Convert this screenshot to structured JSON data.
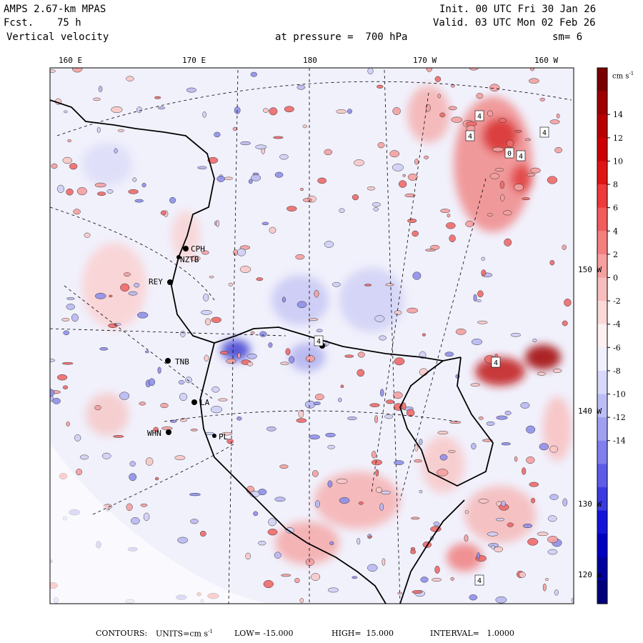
{
  "header": {
    "model": "AMPS 2.67-km MPAS",
    "fcst_label": "Fcst.",
    "fcst_value": "75 h",
    "field": "Vertical velocity",
    "init": "Init. 00 UTC Fri 30 Jan 26",
    "valid": "Valid. 03 UTC Mon 02 Feb 26",
    "pressure": "at pressure =  700 hPa",
    "smoothing": "sm= 6"
  },
  "longitude_labels": [
    "160 E",
    "170 E",
    "180",
    "170 W",
    "160 W"
  ],
  "latitude_labels": [
    "150 W",
    "140 W",
    "130 W",
    "120 W"
  ],
  "stations": [
    "CPH",
    "NZTB",
    "REY",
    "TNB",
    "LA",
    "WHN",
    "PL"
  ],
  "contour_labels": [
    "4",
    "4",
    "4",
    "0",
    "4",
    "4",
    "4",
    "4"
  ],
  "colorbar": {
    "units": "cm s",
    "units_exp": "-1",
    "ticks": [
      "14",
      "12",
      "10",
      "8",
      "6",
      "4",
      "2",
      "0",
      "-2",
      "-4",
      "-6",
      "-8",
      "-10",
      "-12",
      "-14"
    ],
    "colors": [
      "#7a0000",
      "#9e0000",
      "#b80000",
      "#cc0000",
      "#e01414",
      "#ee3a3a",
      "#f25c5c",
      "#f47f7f",
      "#f6a0a0",
      "#f8bdbd",
      "#fad8d8",
      "#fdf0f0",
      "#f0f0fd",
      "#d8d8fa",
      "#bdbdf6",
      "#a0a0f2",
      "#7f7fee",
      "#5c5ce8",
      "#3a3ae0",
      "#1414d8",
      "#0000c0",
      "#00009e",
      "#00007a"
    ]
  },
  "footer": {
    "contours": "CONTOURS:",
    "units_label": "UNITS=cm s",
    "units_exp": "-1",
    "low": "LOW= -15.000",
    "high": "HIGH=  15.000",
    "interval": "INTERVAL=   1.0000"
  }
}
